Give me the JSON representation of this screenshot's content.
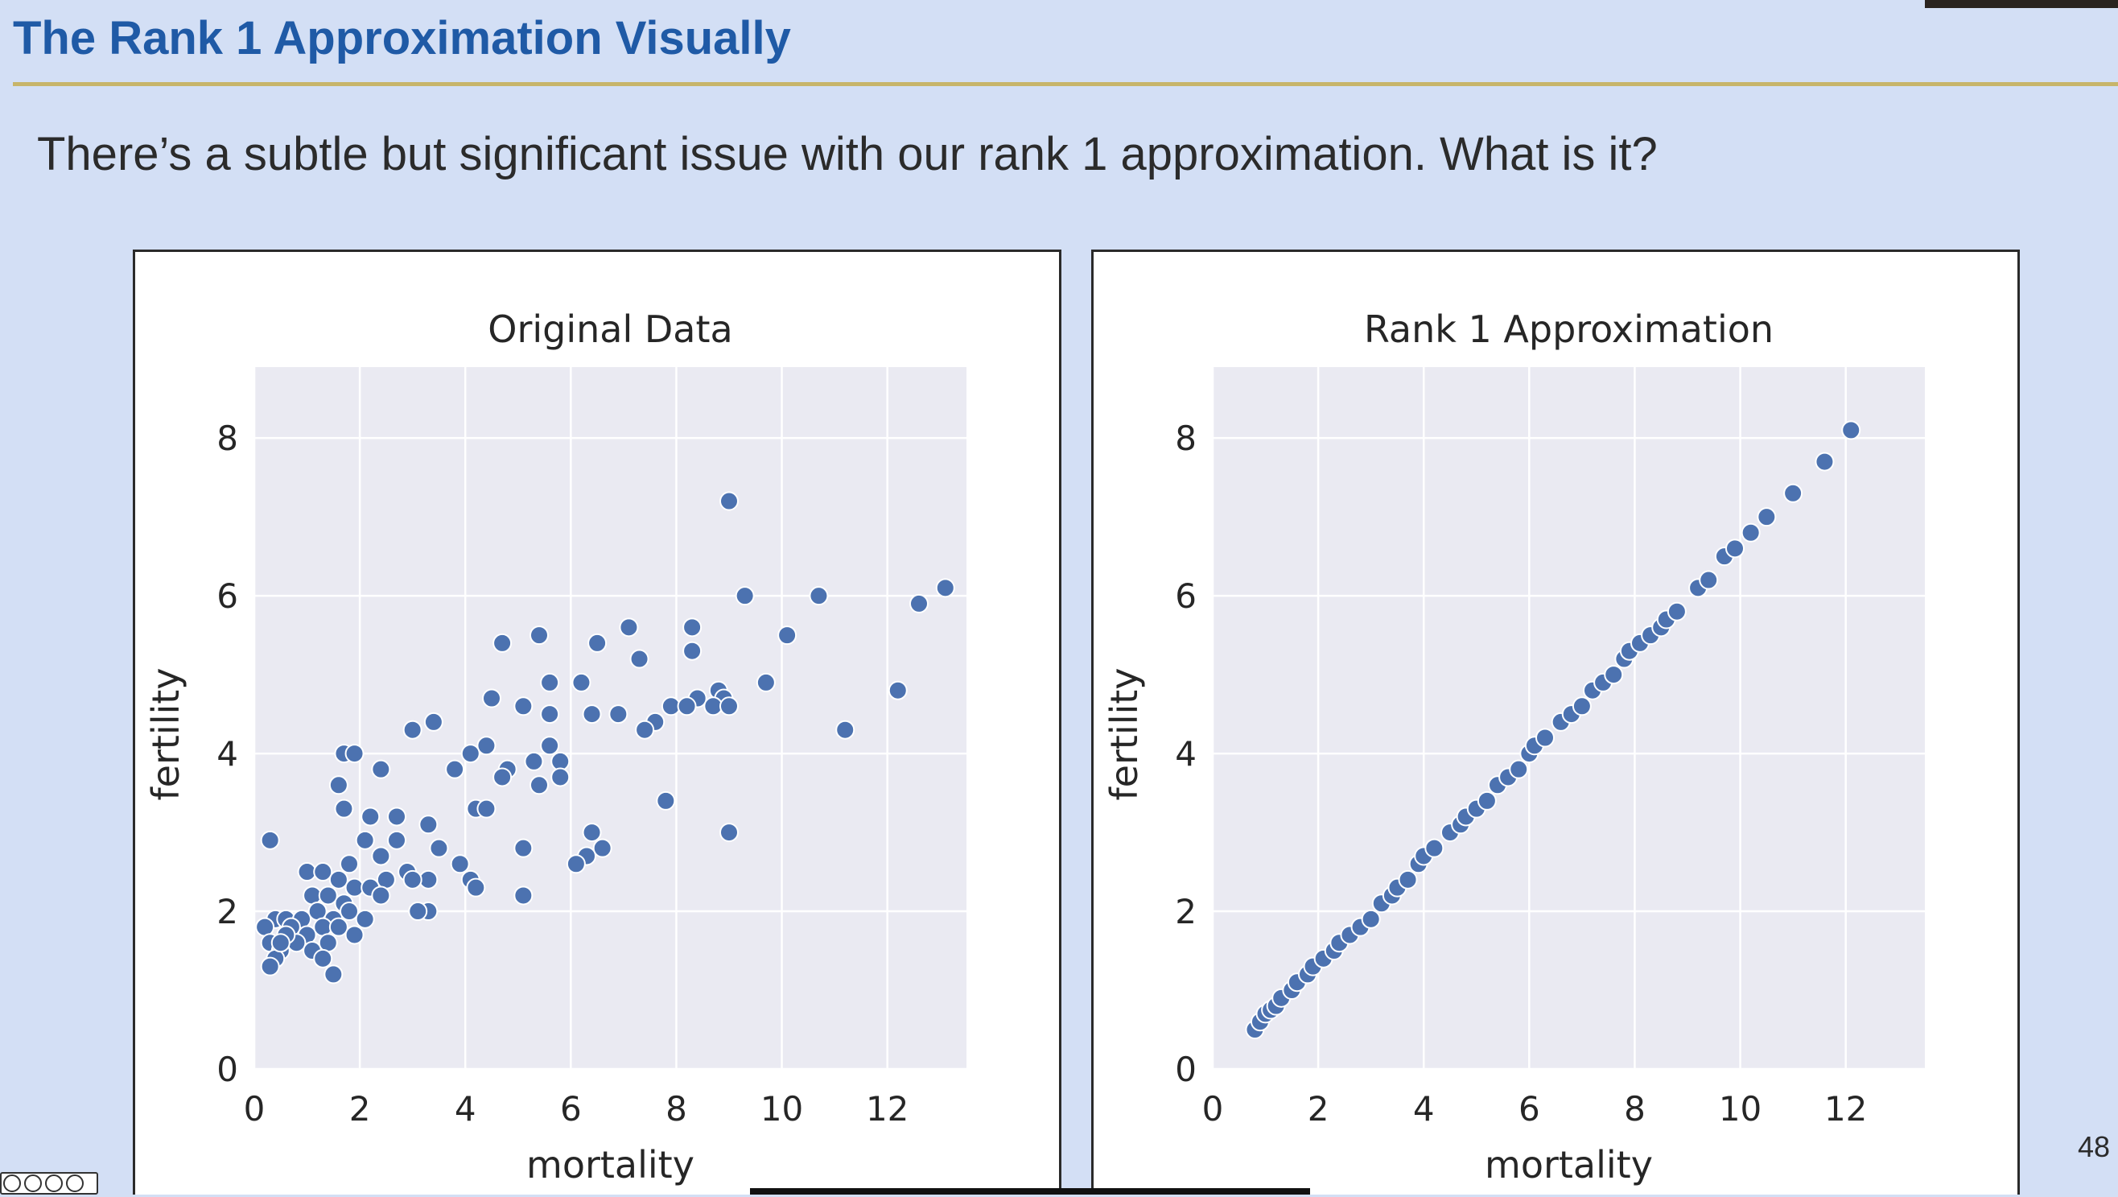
{
  "slide": {
    "title": "The Rank 1 Approximation Visually",
    "subtitle": "There’s a subtle but significant issue with our rank 1 approximation. What is it?",
    "page_number": "48"
  },
  "colors": {
    "background": "#d3dff5",
    "title": "#1f5aa6",
    "rule": "#c7b56a",
    "plot_bg": "#eaeaf2",
    "marker": "#4c72b0"
  },
  "chart_data": [
    {
      "type": "scatter",
      "title": "Original Data",
      "xlabel": "mortality",
      "ylabel": "fertility",
      "xlim": [
        0,
        13.5
      ],
      "ylim": [
        0,
        8.9
      ],
      "xticks": [
        0,
        2,
        4,
        6,
        8,
        10,
        12
      ],
      "yticks": [
        0,
        2,
        4,
        6,
        8
      ],
      "grid": true,
      "points": [
        [
          9.0,
          7.2
        ],
        [
          13.1,
          6.1
        ],
        [
          12.6,
          5.9
        ],
        [
          9.3,
          6.0
        ],
        [
          10.7,
          6.0
        ],
        [
          7.1,
          5.6
        ],
        [
          8.3,
          5.6
        ],
        [
          5.4,
          5.5
        ],
        [
          10.1,
          5.5
        ],
        [
          4.7,
          5.4
        ],
        [
          6.5,
          5.4
        ],
        [
          8.3,
          5.3
        ],
        [
          7.3,
          5.2
        ],
        [
          5.6,
          4.9
        ],
        [
          6.2,
          4.9
        ],
        [
          9.7,
          4.9
        ],
        [
          12.2,
          4.8
        ],
        [
          4.5,
          4.7
        ],
        [
          8.4,
          4.7
        ],
        [
          8.8,
          4.8
        ],
        [
          8.9,
          4.7
        ],
        [
          5.1,
          4.6
        ],
        [
          7.9,
          4.6
        ],
        [
          8.2,
          4.6
        ],
        [
          8.7,
          4.6
        ],
        [
          9.0,
          4.6
        ],
        [
          5.6,
          4.5
        ],
        [
          6.4,
          4.5
        ],
        [
          6.9,
          4.5
        ],
        [
          7.6,
          4.4
        ],
        [
          7.4,
          4.3
        ],
        [
          3.4,
          4.4
        ],
        [
          3.0,
          4.3
        ],
        [
          11.2,
          4.3
        ],
        [
          4.4,
          4.1
        ],
        [
          4.1,
          4.0
        ],
        [
          5.6,
          4.1
        ],
        [
          5.8,
          3.9
        ],
        [
          1.7,
          4.0
        ],
        [
          1.9,
          4.0
        ],
        [
          5.3,
          3.9
        ],
        [
          3.8,
          3.8
        ],
        [
          4.8,
          3.8
        ],
        [
          4.7,
          3.7
        ],
        [
          2.4,
          3.8
        ],
        [
          5.8,
          3.7
        ],
        [
          5.4,
          3.6
        ],
        [
          1.6,
          3.6
        ],
        [
          7.8,
          3.4
        ],
        [
          4.2,
          3.3
        ],
        [
          4.4,
          3.3
        ],
        [
          1.7,
          3.3
        ],
        [
          2.7,
          3.2
        ],
        [
          2.2,
          3.2
        ],
        [
          3.3,
          3.1
        ],
        [
          6.4,
          3.0
        ],
        [
          9.0,
          3.0
        ],
        [
          0.3,
          2.9
        ],
        [
          2.1,
          2.9
        ],
        [
          2.7,
          2.9
        ],
        [
          3.5,
          2.8
        ],
        [
          5.1,
          2.8
        ],
        [
          6.6,
          2.8
        ],
        [
          6.3,
          2.7
        ],
        [
          1.8,
          2.6
        ],
        [
          2.4,
          2.7
        ],
        [
          3.9,
          2.6
        ],
        [
          6.1,
          2.6
        ],
        [
          1.0,
          2.5
        ],
        [
          1.3,
          2.5
        ],
        [
          2.9,
          2.5
        ],
        [
          3.3,
          2.4
        ],
        [
          1.6,
          2.4
        ],
        [
          2.5,
          2.4
        ],
        [
          4.1,
          2.4
        ],
        [
          1.9,
          2.3
        ],
        [
          2.2,
          2.3
        ],
        [
          3.0,
          2.4
        ],
        [
          1.1,
          2.2
        ],
        [
          1.4,
          2.2
        ],
        [
          2.4,
          2.2
        ],
        [
          4.2,
          2.3
        ],
        [
          5.1,
          2.2
        ],
        [
          1.7,
          2.1
        ],
        [
          3.3,
          2.0
        ],
        [
          3.1,
          2.0
        ],
        [
          0.4,
          1.9
        ],
        [
          0.6,
          1.9
        ],
        [
          0.9,
          1.9
        ],
        [
          1.2,
          2.0
        ],
        [
          1.5,
          1.9
        ],
        [
          1.8,
          2.0
        ],
        [
          2.1,
          1.9
        ],
        [
          0.2,
          1.8
        ],
        [
          0.7,
          1.8
        ],
        [
          1.0,
          1.7
        ],
        [
          1.3,
          1.8
        ],
        [
          1.6,
          1.8
        ],
        [
          1.9,
          1.7
        ],
        [
          0.3,
          1.6
        ],
        [
          0.8,
          1.6
        ],
        [
          1.1,
          1.5
        ],
        [
          1.4,
          1.6
        ],
        [
          0.5,
          1.5
        ],
        [
          1.3,
          1.4
        ],
        [
          0.4,
          1.4
        ],
        [
          0.3,
          1.3
        ],
        [
          1.5,
          1.2
        ],
        [
          0.6,
          1.7
        ],
        [
          0.5,
          1.6
        ]
      ]
    },
    {
      "type": "scatter",
      "title": "Rank 1 Approximation",
      "xlabel": "mortality",
      "ylabel": "fertility",
      "xlim": [
        0,
        13.5
      ],
      "ylim": [
        0,
        8.9
      ],
      "xticks": [
        0,
        2,
        4,
        6,
        8,
        10,
        12
      ],
      "yticks": [
        0,
        2,
        4,
        6,
        8
      ],
      "grid": true,
      "points": [
        [
          0.8,
          0.5
        ],
        [
          0.9,
          0.6
        ],
        [
          1.0,
          0.7
        ],
        [
          1.1,
          0.75
        ],
        [
          1.2,
          0.8
        ],
        [
          1.3,
          0.9
        ],
        [
          1.5,
          1.0
        ],
        [
          1.6,
          1.1
        ],
        [
          1.8,
          1.2
        ],
        [
          1.9,
          1.3
        ],
        [
          2.1,
          1.4
        ],
        [
          2.3,
          1.5
        ],
        [
          2.4,
          1.6
        ],
        [
          2.6,
          1.7
        ],
        [
          2.8,
          1.8
        ],
        [
          3.0,
          1.9
        ],
        [
          3.2,
          2.1
        ],
        [
          3.4,
          2.2
        ],
        [
          3.5,
          2.3
        ],
        [
          3.7,
          2.4
        ],
        [
          3.9,
          2.6
        ],
        [
          4.0,
          2.7
        ],
        [
          4.2,
          2.8
        ],
        [
          4.5,
          3.0
        ],
        [
          4.7,
          3.1
        ],
        [
          4.8,
          3.2
        ],
        [
          5.0,
          3.3
        ],
        [
          5.2,
          3.4
        ],
        [
          5.4,
          3.6
        ],
        [
          5.6,
          3.7
        ],
        [
          5.8,
          3.8
        ],
        [
          6.0,
          4.0
        ],
        [
          6.1,
          4.1
        ],
        [
          6.3,
          4.2
        ],
        [
          6.6,
          4.4
        ],
        [
          6.8,
          4.5
        ],
        [
          7.0,
          4.6
        ],
        [
          7.2,
          4.8
        ],
        [
          7.4,
          4.9
        ],
        [
          7.6,
          5.0
        ],
        [
          7.8,
          5.2
        ],
        [
          7.9,
          5.3
        ],
        [
          8.1,
          5.4
        ],
        [
          8.3,
          5.5
        ],
        [
          8.5,
          5.6
        ],
        [
          8.6,
          5.7
        ],
        [
          8.8,
          5.8
        ],
        [
          9.2,
          6.1
        ],
        [
          9.4,
          6.2
        ],
        [
          9.7,
          6.5
        ],
        [
          9.9,
          6.6
        ],
        [
          10.2,
          6.8
        ],
        [
          10.5,
          7.0
        ],
        [
          11.0,
          7.3
        ],
        [
          11.6,
          7.7
        ],
        [
          12.1,
          8.1
        ]
      ]
    }
  ]
}
